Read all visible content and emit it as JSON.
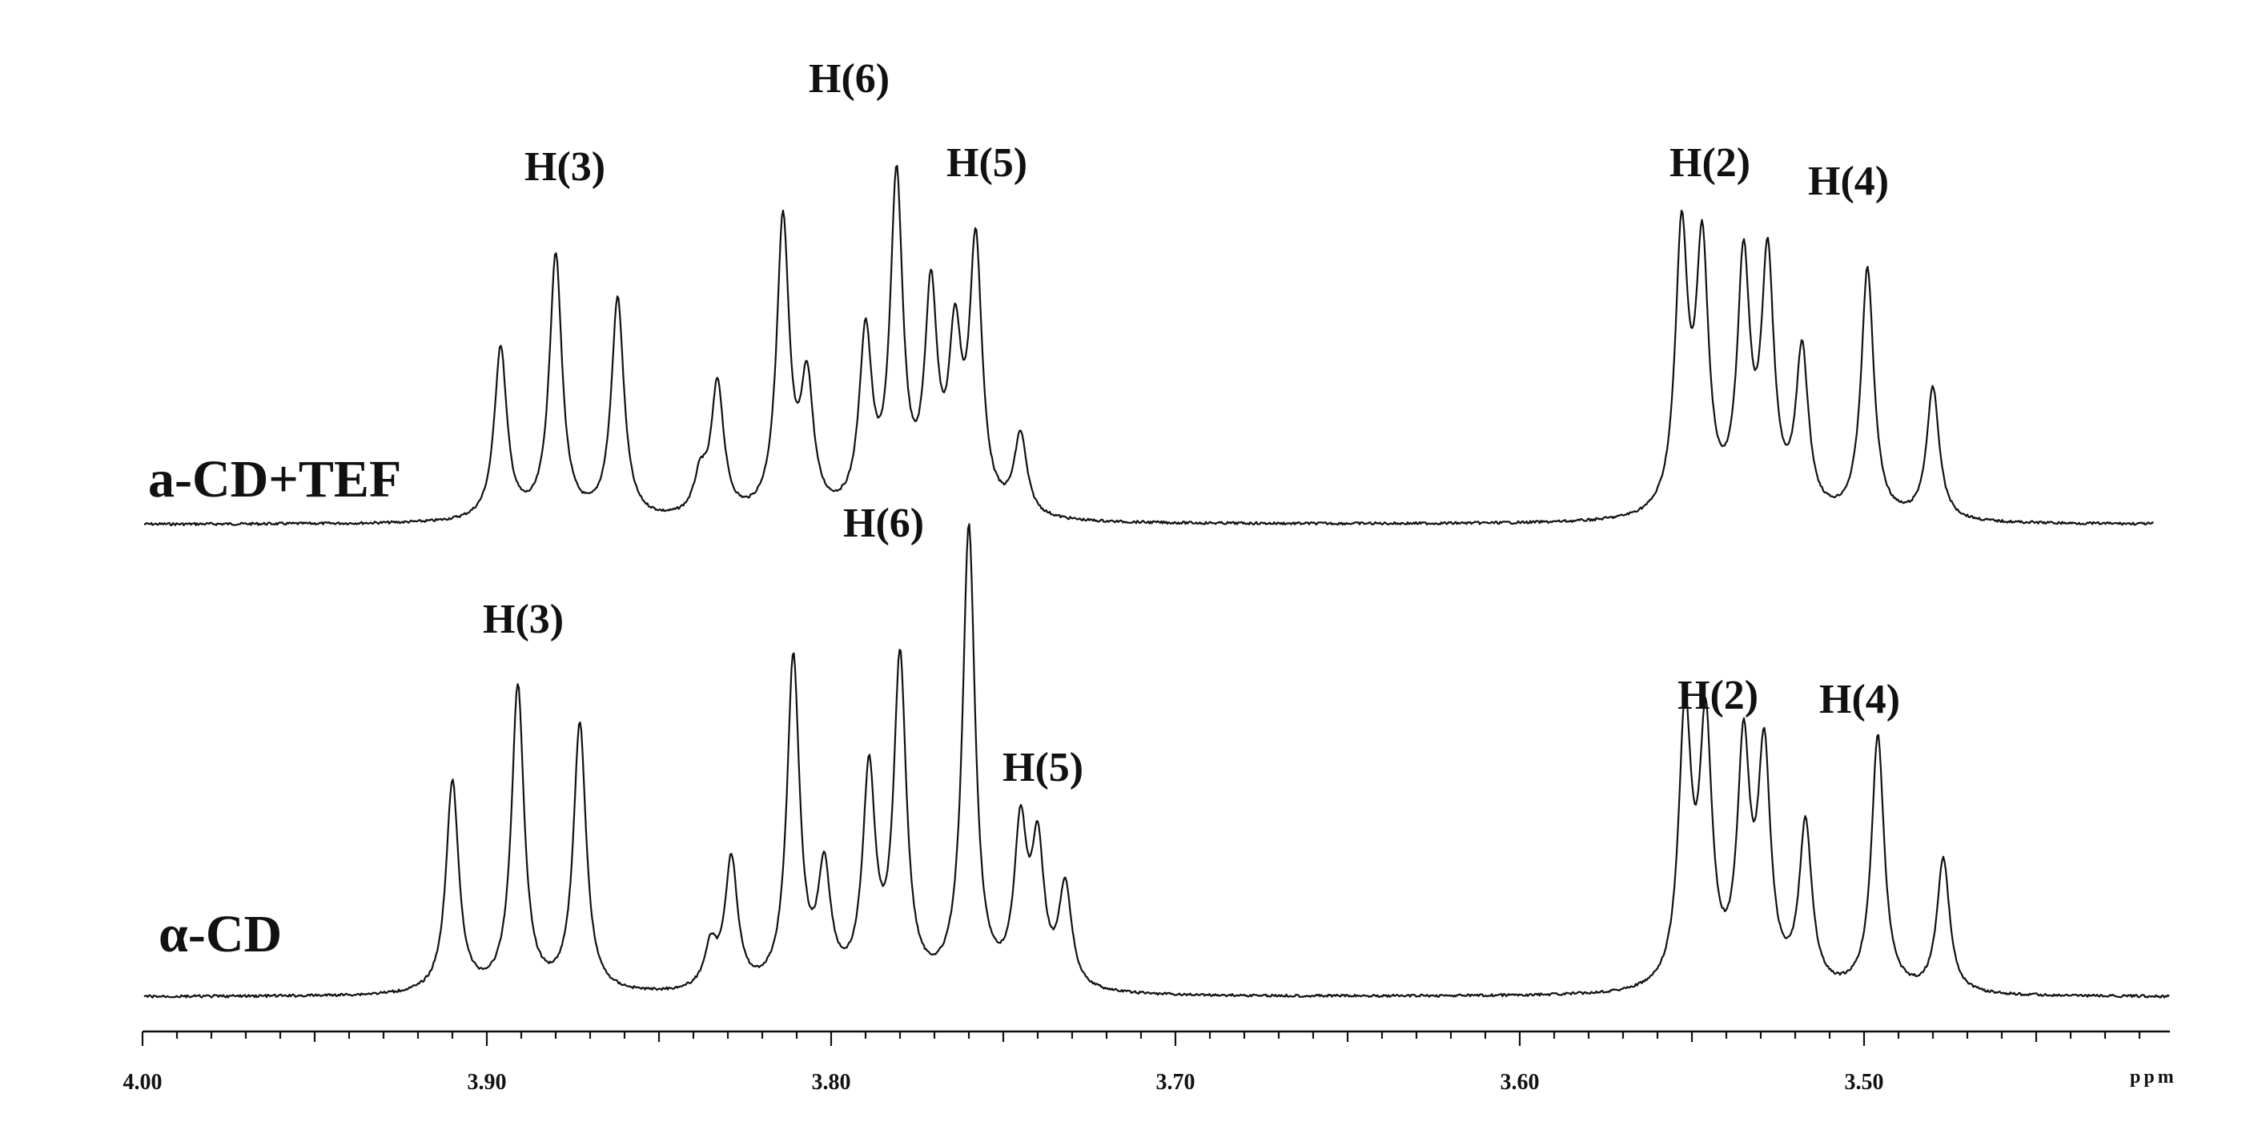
{
  "chart_data": {
    "type": "line",
    "xlabel": "ppm",
    "xlim": [
      4.0,
      3.405
    ],
    "x_reversed": true,
    "x_ticks": [
      "4.00",
      "3.90",
      "3.80",
      "3.70",
      "3.60",
      "3.50"
    ],
    "x_tick_values": [
      4.0,
      3.9,
      3.8,
      3.7,
      3.6,
      3.5
    ],
    "minor_tick_step": 0.01,
    "series": [
      {
        "name": "a-CD+TEF",
        "peaks": [
          {
            "ppm": 3.896,
            "height": 0.47
          },
          {
            "ppm": 3.88,
            "height": 0.72
          },
          {
            "ppm": 3.862,
            "height": 0.6
          },
          {
            "ppm": 3.833,
            "height": 0.36
          },
          {
            "ppm": 3.838,
            "height": 0.1
          },
          {
            "ppm": 3.814,
            "height": 0.8
          },
          {
            "ppm": 3.807,
            "height": 0.35
          },
          {
            "ppm": 3.79,
            "height": 0.48
          },
          {
            "ppm": 3.781,
            "height": 0.9
          },
          {
            "ppm": 3.771,
            "height": 0.58
          },
          {
            "ppm": 3.764,
            "height": 0.44
          },
          {
            "ppm": 3.758,
            "height": 0.72
          },
          {
            "ppm": 3.745,
            "height": 0.22
          },
          {
            "ppm": 3.553,
            "height": 0.75
          },
          {
            "ppm": 3.547,
            "height": 0.7
          },
          {
            "ppm": 3.535,
            "height": 0.67
          },
          {
            "ppm": 3.528,
            "height": 0.68
          },
          {
            "ppm": 3.518,
            "height": 0.44
          },
          {
            "ppm": 3.499,
            "height": 0.68
          },
          {
            "ppm": 3.48,
            "height": 0.36
          }
        ],
        "annotations": [
          {
            "text": "H(3)",
            "ppm": 3.88
          },
          {
            "text": "H(6)",
            "ppm": 3.781
          },
          {
            "text": "H(5)",
            "ppm": 3.758
          },
          {
            "text": "H(2)",
            "ppm": 3.547
          },
          {
            "text": "H(4)",
            "ppm": 3.499
          }
        ]
      },
      {
        "name": "α-CD",
        "peaks": [
          {
            "ppm": 3.91,
            "height": 0.52
          },
          {
            "ppm": 3.891,
            "height": 0.75
          },
          {
            "ppm": 3.873,
            "height": 0.66
          },
          {
            "ppm": 3.835,
            "height": 0.1
          },
          {
            "ppm": 3.829,
            "height": 0.32
          },
          {
            "ppm": 3.811,
            "height": 0.81
          },
          {
            "ppm": 3.802,
            "height": 0.28
          },
          {
            "ppm": 3.789,
            "height": 0.52
          },
          {
            "ppm": 3.78,
            "height": 0.8
          },
          {
            "ppm": 3.76,
            "height": 1.13
          },
          {
            "ppm": 3.745,
            "height": 0.38
          },
          {
            "ppm": 3.74,
            "height": 0.33
          },
          {
            "ppm": 3.732,
            "height": 0.25
          },
          {
            "ppm": 3.552,
            "height": 0.66
          },
          {
            "ppm": 3.546,
            "height": 0.62
          },
          {
            "ppm": 3.535,
            "height": 0.57
          },
          {
            "ppm": 3.529,
            "height": 0.56
          },
          {
            "ppm": 3.517,
            "height": 0.4
          },
          {
            "ppm": 3.496,
            "height": 0.63
          },
          {
            "ppm": 3.477,
            "height": 0.33
          }
        ],
        "annotations": [
          {
            "text": "H(3)",
            "ppm": 3.891
          },
          {
            "text": "H(6)",
            "ppm": 3.76
          },
          {
            "text": "H(5)",
            "ppm": 3.74
          },
          {
            "text": "H(2)",
            "ppm": 3.546
          },
          {
            "text": "H(4)",
            "ppm": 3.496
          }
        ]
      }
    ]
  },
  "labels": {
    "series_top": "a-CD+TEF",
    "series_bottom": "α-CD",
    "unit": "ppm",
    "top_h3": "H(3)",
    "top_h6": "H(6)",
    "top_h5": "H(5)",
    "top_h2": "H(2)",
    "top_h4": "H(4)",
    "bot_h3": "H(3)",
    "bot_h6": "H(6)",
    "bot_h5": "H(5)",
    "bot_h2": "H(2)",
    "bot_h4": "H(4)",
    "ticks": [
      "4.00",
      "3.90",
      "3.80",
      "3.70",
      "3.60",
      "3.50"
    ]
  }
}
